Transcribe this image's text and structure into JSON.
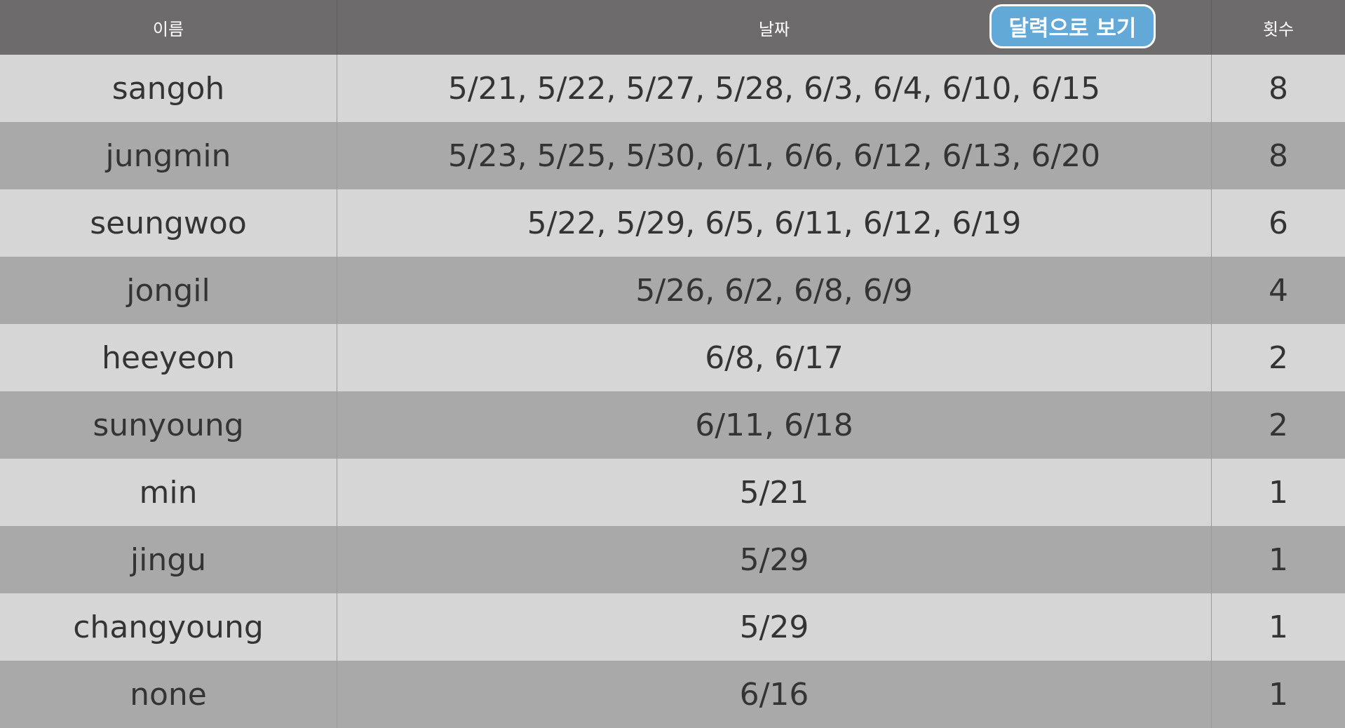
{
  "header": {
    "name_label": "이름",
    "dates_label": "날짜",
    "count_label": "횟수",
    "calendar_button_label": "달력으로 보기"
  },
  "colors": {
    "header_bg": "#6d6b6c",
    "row_light": "#d6d6d6",
    "row_dark": "#a9a9a9",
    "button_bg": "#62a9d8",
    "text": "#343434"
  },
  "rows": [
    {
      "name": "sangoh",
      "dates": "5/21, 5/22, 5/27, 5/28, 6/3, 6/4, 6/10, 6/15",
      "count": "8"
    },
    {
      "name": "jungmin",
      "dates": "5/23, 5/25, 5/30, 6/1, 6/6, 6/12, 6/13, 6/20",
      "count": "8"
    },
    {
      "name": "seungwoo",
      "dates": "5/22, 5/29, 6/5, 6/11, 6/12, 6/19",
      "count": "6"
    },
    {
      "name": "jongil",
      "dates": "5/26, 6/2, 6/8, 6/9",
      "count": "4"
    },
    {
      "name": "heeyeon",
      "dates": "6/8, 6/17",
      "count": "2"
    },
    {
      "name": "sunyoung",
      "dates": "6/11, 6/18",
      "count": "2"
    },
    {
      "name": "min",
      "dates": "5/21",
      "count": "1"
    },
    {
      "name": "jingu",
      "dates": "5/29",
      "count": "1"
    },
    {
      "name": "changyoung",
      "dates": "5/29",
      "count": "1"
    },
    {
      "name": "none",
      "dates": "6/16",
      "count": "1"
    }
  ]
}
